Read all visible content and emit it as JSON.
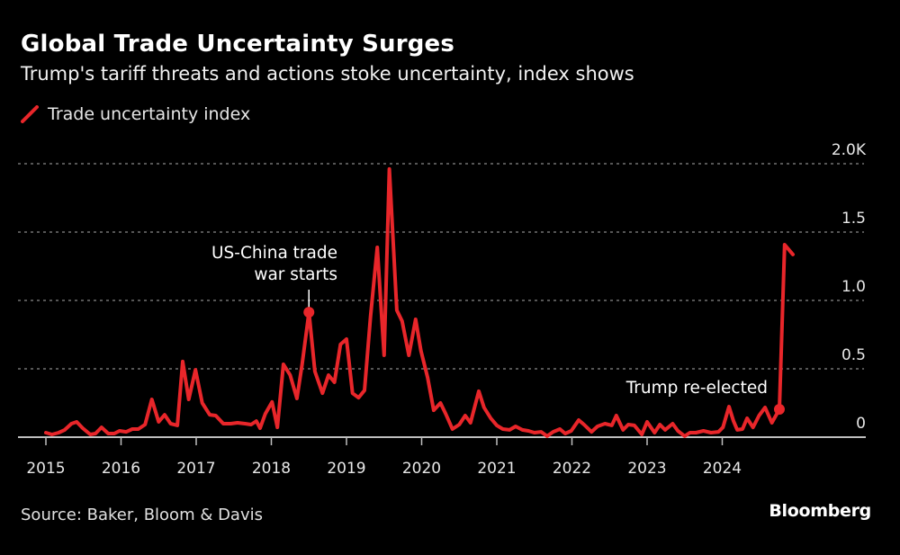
{
  "header": {
    "title": "Global Trade Uncertainty Surges",
    "subtitle": "Trump's tariff threats and actions stoke uncertainty, index shows"
  },
  "legend": {
    "items": [
      {
        "label": "Trade uncertainty index",
        "color": "#e8262a",
        "icon": "line-swatch-icon"
      }
    ]
  },
  "footer": {
    "source": "Source: Baker, Bloom & Davis",
    "brand": "Bloomberg"
  },
  "chart_data": {
    "type": "line",
    "title": "Global Trade Uncertainty Surges",
    "subtitle": "Trump's tariff threats and actions stoke uncertainty, index shows",
    "xlabel": "",
    "ylabel": "",
    "xlim": [
      2015.0,
      2024.95
    ],
    "ylim": [
      0,
      2000
    ],
    "grid": true,
    "legend_position": "top-left",
    "y_axis_side": "right",
    "x_ticks": [
      {
        "value": 2015,
        "label": "2015"
      },
      {
        "value": 2016,
        "label": "2016"
      },
      {
        "value": 2017,
        "label": "2017"
      },
      {
        "value": 2018,
        "label": "2018"
      },
      {
        "value": 2019,
        "label": "2019"
      },
      {
        "value": 2020,
        "label": "2020"
      },
      {
        "value": 2021,
        "label": "2021"
      },
      {
        "value": 2022,
        "label": "2022"
      },
      {
        "value": 2023,
        "label": "2023"
      },
      {
        "value": 2024,
        "label": "2024"
      }
    ],
    "y_ticks": [
      {
        "value": 0,
        "label": "0"
      },
      {
        "value": 500,
        "label": "0.5"
      },
      {
        "value": 1000,
        "label": "1.0"
      },
      {
        "value": 1500,
        "label": "1.5"
      },
      {
        "value": 2000,
        "label": "2.0K"
      }
    ],
    "series": [
      {
        "name": "Trade uncertainty index",
        "color": "#e8262a",
        "x": [
          2015.0,
          2015.08,
          2015.17,
          2015.25,
          2015.34,
          2015.41,
          2015.49,
          2015.59,
          2015.66,
          2015.74,
          2015.83,
          2015.91,
          2015.98,
          2016.07,
          2016.15,
          2016.23,
          2016.32,
          2016.41,
          2016.5,
          2016.58,
          2016.66,
          2016.75,
          2016.82,
          2016.9,
          2016.99,
          2017.08,
          2017.18,
          2017.26,
          2017.36,
          2017.46,
          2017.55,
          2017.65,
          2017.73,
          2017.8,
          2017.85,
          2017.92,
          2018.01,
          2018.08,
          2018.16,
          2018.25,
          2018.34,
          2018.41,
          2018.5,
          2018.58,
          2018.68,
          2018.76,
          2018.84,
          2018.92,
          2019.0,
          2019.08,
          2019.16,
          2019.24,
          2019.32,
          2019.41,
          2019.5,
          2019.57,
          2019.67,
          2019.74,
          2019.83,
          2019.92,
          2019.99,
          2020.08,
          2020.16,
          2020.25,
          2020.32,
          2020.41,
          2020.5,
          2020.58,
          2020.65,
          2020.76,
          2020.83,
          2020.92,
          2021.0,
          2021.08,
          2021.17,
          2021.25,
          2021.34,
          2021.42,
          2021.5,
          2021.59,
          2021.67,
          2021.75,
          2021.84,
          2021.91,
          2021.99,
          2022.09,
          2022.16,
          2022.26,
          2022.34,
          2022.44,
          2022.53,
          2022.59,
          2022.68,
          2022.75,
          2022.83,
          2022.93,
          2023.0,
          2023.1,
          2023.17,
          2023.24,
          2023.34,
          2023.41,
          2023.5,
          2023.57,
          2023.65,
          2023.75,
          2023.85,
          2023.95,
          2024.01,
          2024.09,
          2024.15,
          2024.2,
          2024.27,
          2024.33,
          2024.41,
          2024.49,
          2024.57,
          2024.66,
          2024.76,
          2024.83,
          2024.94
        ],
        "values": [
          33,
          20,
          33,
          53,
          99,
          112,
          66,
          20,
          26,
          72,
          26,
          26,
          46,
          39,
          59,
          59,
          92,
          276,
          112,
          164,
          99,
          86,
          553,
          276,
          493,
          250,
          164,
          158,
          99,
          99,
          105,
          99,
          92,
          118,
          66,
          171,
          257,
          72,
          533,
          454,
          283,
          533,
          914,
          480,
          322,
          454,
          401,
          678,
          717,
          322,
          289,
          342,
          882,
          1388,
          599,
          1961,
          928,
          849,
          599,
          862,
          632,
          434,
          197,
          250,
          171,
          59,
          92,
          158,
          105,
          336,
          217,
          138,
          86,
          59,
          53,
          79,
          53,
          46,
          33,
          39,
          7,
          39,
          59,
          26,
          46,
          125,
          92,
          39,
          79,
          99,
          86,
          158,
          53,
          92,
          86,
          20,
          112,
          33,
          92,
          53,
          99,
          46,
          7,
          33,
          33,
          46,
          33,
          39,
          72,
          224,
          118,
          53,
          59,
          138,
          72,
          158,
          217,
          105,
          204,
          1408,
          1336
        ]
      }
    ],
    "annotations": [
      {
        "label_lines": [
          "US-China trade",
          "war starts"
        ],
        "x": 2018.5,
        "value": 914
      },
      {
        "label_lines": [
          "Trump re-elected"
        ],
        "x": 2024.76,
        "value": 204
      }
    ]
  }
}
